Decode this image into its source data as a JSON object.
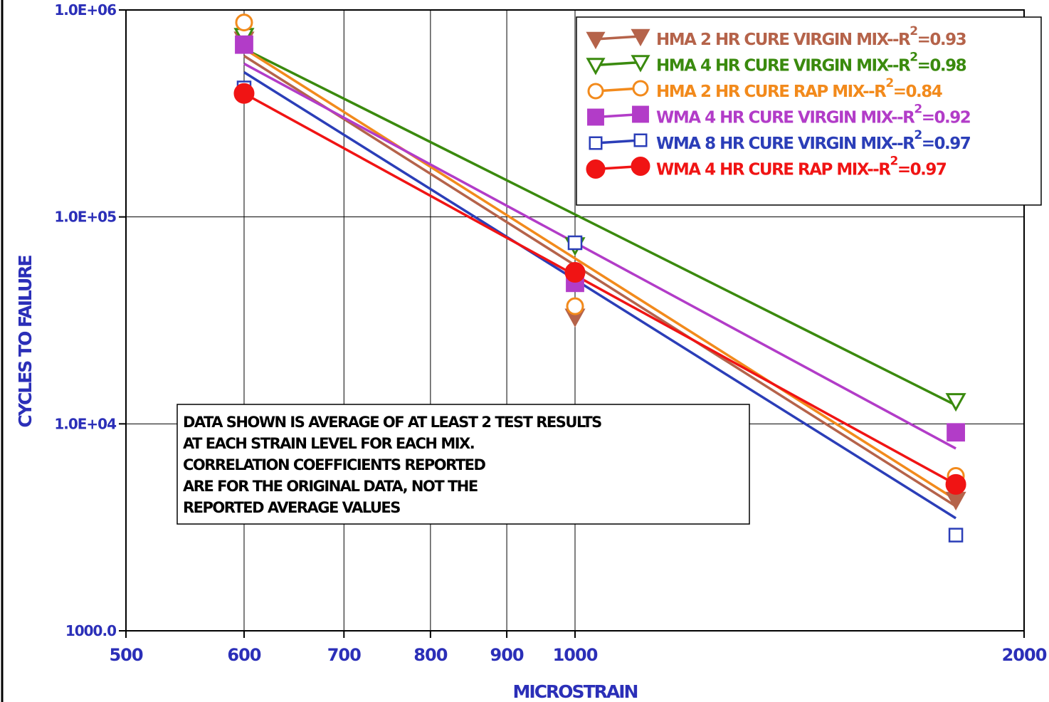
{
  "chart_data": {
    "type": "scatter",
    "x_scale": "log",
    "y_scale": "log",
    "xlabel": "MICROSTRAIN",
    "ylabel": "CYCLES TO FAILURE",
    "xlim": [
      500,
      2000
    ],
    "ylim": [
      1000,
      1000000
    ],
    "x_ticks": [
      "500",
      "600",
      "700",
      "800",
      "900",
      "1000",
      "2000"
    ],
    "y_ticks": [
      "1000.0",
      "1.0E+04",
      "1.0E+05",
      "1.0E+06"
    ],
    "grid": true,
    "legend_position": "top-right",
    "series": [
      {
        "name": "HMA 2 HR CURE VIRGIN MIX--R",
        "r2": "=0.93",
        "color": "#b5634a",
        "marker": "triangle-down-filled",
        "x": [
          600,
          1000,
          1800
        ],
        "y": [
          720000,
          33000,
          4300
        ],
        "fit": {
          "x": [
            600,
            1800
          ],
          "y": [
            600000,
            4000
          ]
        }
      },
      {
        "name": "HMA 4 HR CURE VIRGIN MIX--R",
        "r2": "=0.98",
        "color": "#3a8a0e",
        "marker": "triangle-down-open",
        "x": [
          600,
          1000,
          1800
        ],
        "y": [
          750000,
          73000,
          12900
        ],
        "fit": {
          "x": [
            600,
            1800
          ],
          "y": [
            650000,
            12300
          ]
        }
      },
      {
        "name": "HMA 2 HR CURE RAP MIX--R",
        "r2": "=0.84",
        "color": "#f28a1c",
        "marker": "circle-open",
        "x": [
          600,
          1000,
          1800
        ],
        "y": [
          870000,
          37000,
          5600
        ],
        "fit": {
          "x": [
            600,
            1800
          ],
          "y": [
            650000,
            4300
          ]
        }
      },
      {
        "name": "WMA 4 HR CURE VIRGIN MIX--R",
        "r2": "=0.92",
        "color": "#b23cc8",
        "marker": "square-filled",
        "x": [
          600,
          1000,
          1800
        ],
        "y": [
          680000,
          48000,
          9100
        ],
        "fit": {
          "x": [
            600,
            1800
          ],
          "y": [
            550000,
            7600
          ]
        }
      },
      {
        "name": "WMA 8 HR CURE VIRGIN MIX--R",
        "r2": "=0.97",
        "color": "#2b3eb8",
        "marker": "square-open",
        "x": [
          600,
          1000,
          1800
        ],
        "y": [
          420000,
          75000,
          2900
        ],
        "fit": {
          "x": [
            600,
            1800
          ],
          "y": [
            500000,
            3500
          ]
        }
      },
      {
        "name": "WMA 4 HR CURE RAP MIX--R",
        "r2": "=0.97",
        "color": "#f01414",
        "marker": "circle-filled",
        "x": [
          600,
          1000,
          1800
        ],
        "y": [
          395000,
          54000,
          5100
        ],
        "fit": {
          "x": [
            600,
            1800
          ],
          "y": [
            395000,
            5100
          ]
        }
      }
    ],
    "legend_superscript": "2",
    "annotation": [
      "DATA SHOWN IS AVERAGE OF AT LEAST 2 TEST RESULTS",
      "AT EACH STRAIN LEVEL FOR EACH MIX.",
      "CORRELATION COEFFICIENTS REPORTED",
      "ARE FOR THE ORIGINAL DATA, NOT THE",
      "REPORTED AVERAGE VALUES"
    ]
  }
}
